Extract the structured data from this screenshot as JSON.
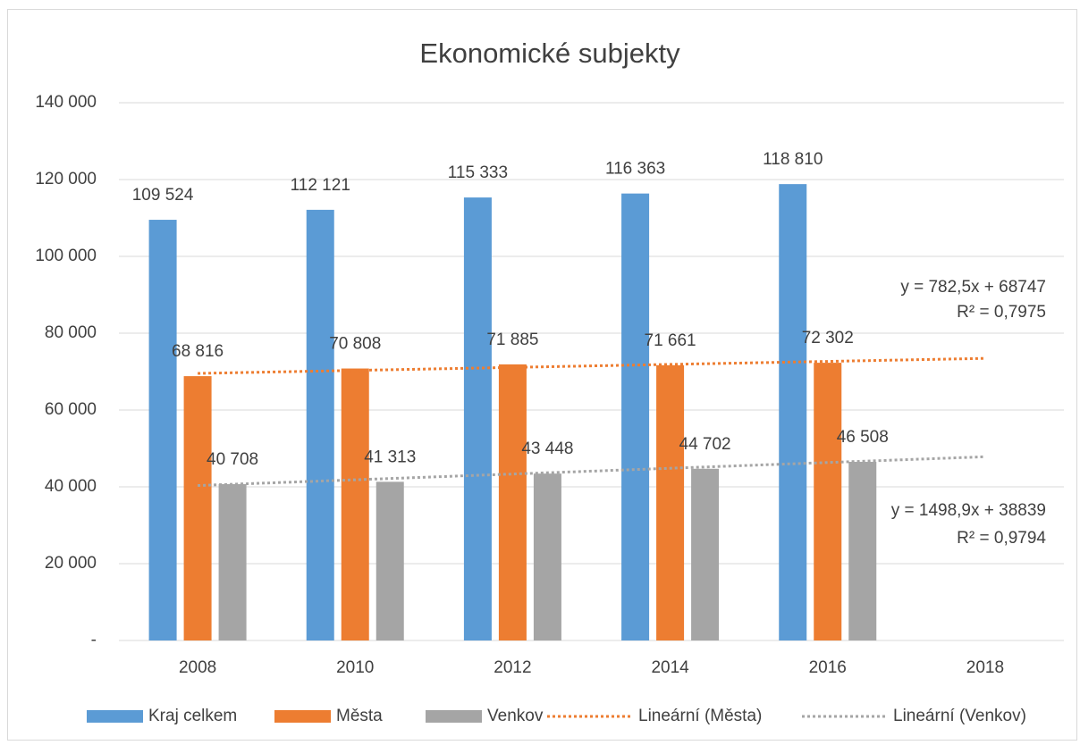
{
  "chart_data": {
    "type": "bar",
    "title": "Ekonomické subjekty",
    "categories": [
      "2008",
      "2010",
      "2012",
      "2014",
      "2016",
      "2018"
    ],
    "series": [
      {
        "name": "Kraj celkem",
        "color": "#5b9bd5",
        "values": [
          109524,
          112121,
          115333,
          116363,
          118810,
          null
        ],
        "value_labels": [
          "109 524",
          "112 121",
          "115 333",
          "116 363",
          "118 810",
          null
        ]
      },
      {
        "name": "Města",
        "color": "#ed7d31",
        "values": [
          68816,
          70808,
          71885,
          71661,
          72302,
          null
        ],
        "value_labels": [
          "68 816",
          "70 808",
          "71 885",
          "71 661",
          "72 302",
          null
        ]
      },
      {
        "name": "Venkov",
        "color": "#a5a5a5",
        "values": [
          40708,
          41313,
          43448,
          44702,
          46508,
          null
        ],
        "value_labels": [
          "40 708",
          "41 313",
          "43 448",
          "44 702",
          "46 508",
          null
        ]
      },
      {
        "name": "Lineární (Města)",
        "type": "line",
        "dash": "dotted",
        "color": "#ed7d31",
        "values": [
          69529.5,
          70312,
          71094.5,
          71877,
          72659.5,
          73442
        ]
      },
      {
        "name": "Lineární (Venkov)",
        "type": "line",
        "dash": "dotted",
        "color": "#a5a5a5",
        "values": [
          40337.9,
          41836.8,
          43335.7,
          44834.6,
          46333.5,
          47832.4
        ]
      }
    ],
    "annotations": [
      "y = 782,5x + 68747",
      "R² = 0,7975",
      "y = 1498,9x + 38839",
      "R² = 0,9794"
    ],
    "ylim": [
      0,
      140000
    ],
    "yticks": [
      {
        "value": 0,
        "label": "-"
      },
      {
        "value": 20000,
        "label": "20 000"
      },
      {
        "value": 40000,
        "label": "40 000"
      },
      {
        "value": 60000,
        "label": "60 000"
      },
      {
        "value": 80000,
        "label": "80 000"
      },
      {
        "value": 100000,
        "label": "100 000"
      },
      {
        "value": 120000,
        "label": "120 000"
      },
      {
        "value": 140000,
        "label": "140 000"
      }
    ],
    "grid": true,
    "legend": "bottom"
  }
}
